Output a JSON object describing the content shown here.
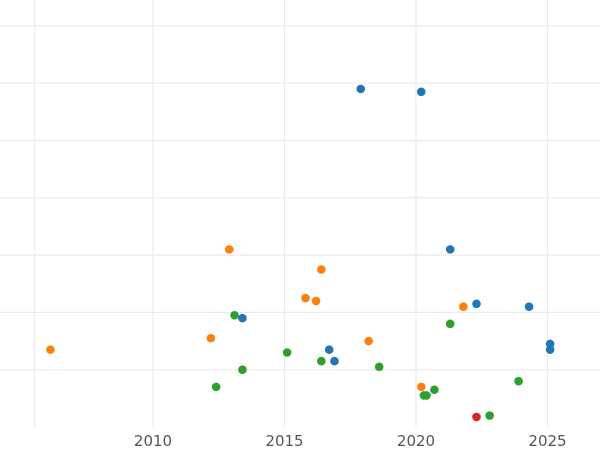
{
  "chart_data": {
    "type": "scatter",
    "title": "",
    "xlabel": "",
    "ylabel": "",
    "xlim": [
      2005,
      2026.9
    ],
    "ylim": [
      0,
      15
    ],
    "grid": true,
    "legend": "none",
    "x_ticks": [
      2010,
      2015,
      2020,
      2025
    ],
    "x_tick_labels": [
      "2010",
      "2015",
      "2020",
      "2025"
    ],
    "y_gridlines": [
      2,
      4,
      6,
      8,
      10,
      12,
      14
    ],
    "series": [
      {
        "color": "#1f77b4",
        "points": [
          {
            "x": 2017.9,
            "y": 11.8
          },
          {
            "x": 2020.2,
            "y": 11.7
          },
          {
            "x": 2021.3,
            "y": 6.2
          },
          {
            "x": 2013.4,
            "y": 3.8
          },
          {
            "x": 2016.7,
            "y": 2.7
          },
          {
            "x": 2016.9,
            "y": 2.3
          },
          {
            "x": 2022.3,
            "y": 4.3
          },
          {
            "x": 2024.3,
            "y": 4.2
          },
          {
            "x": 2025.1,
            "y": 2.9
          },
          {
            "x": 2025.1,
            "y": 2.7
          }
        ]
      },
      {
        "color": "#ff7f0e",
        "points": [
          {
            "x": 2012.9,
            "y": 6.2
          },
          {
            "x": 2016.4,
            "y": 5.5
          },
          {
            "x": 2015.8,
            "y": 4.5
          },
          {
            "x": 2016.2,
            "y": 4.4
          },
          {
            "x": 2021.8,
            "y": 4.2
          },
          {
            "x": 2012.2,
            "y": 3.1
          },
          {
            "x": 2018.2,
            "y": 3.0
          },
          {
            "x": 2006.1,
            "y": 2.7
          },
          {
            "x": 2020.2,
            "y": 1.4
          }
        ]
      },
      {
        "color": "#2ca02c",
        "points": [
          {
            "x": 2013.1,
            "y": 3.9
          },
          {
            "x": 2021.3,
            "y": 3.6
          },
          {
            "x": 2015.1,
            "y": 2.6
          },
          {
            "x": 2016.4,
            "y": 2.3
          },
          {
            "x": 2018.6,
            "y": 2.1
          },
          {
            "x": 2013.4,
            "y": 2.0
          },
          {
            "x": 2023.9,
            "y": 1.6
          },
          {
            "x": 2012.4,
            "y": 1.4
          },
          {
            "x": 2020.7,
            "y": 1.3
          },
          {
            "x": 2020.3,
            "y": 1.1
          },
          {
            "x": 2020.4,
            "y": 1.1
          },
          {
            "x": 2022.8,
            "y": 0.4
          }
        ]
      },
      {
        "color": "#d62728",
        "points": [
          {
            "x": 2022.3,
            "y": 0.35
          }
        ]
      }
    ]
  }
}
